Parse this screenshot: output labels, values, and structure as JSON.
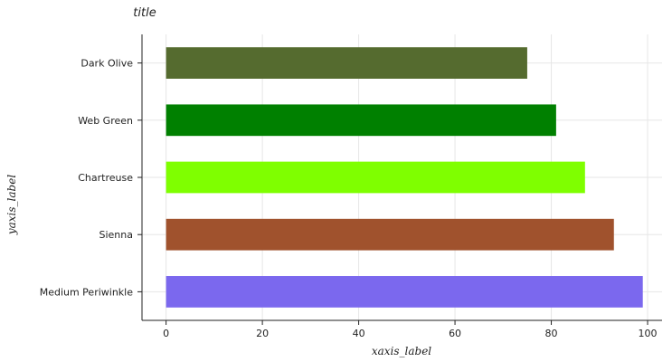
{
  "chart_data": {
    "type": "bar",
    "orientation": "horizontal",
    "title": "title",
    "xlabel": "xaxis_label",
    "ylabel": "yaxis_label",
    "categories": [
      "Medium Periwinkle",
      "Sienna",
      "Chartreuse",
      "Web Green",
      "Dark Olive"
    ],
    "values": [
      99,
      93,
      87,
      81,
      75
    ],
    "colors": [
      "#7b68ee",
      "#a0522d",
      "#7fff00",
      "#008000",
      "#556b2f"
    ],
    "xlim": [
      -5,
      103
    ],
    "xticks": [
      0,
      20,
      40,
      60,
      80,
      100
    ],
    "xtick_labels": [
      "0",
      "20",
      "40",
      "60",
      "80",
      "100"
    ],
    "grid": true
  }
}
